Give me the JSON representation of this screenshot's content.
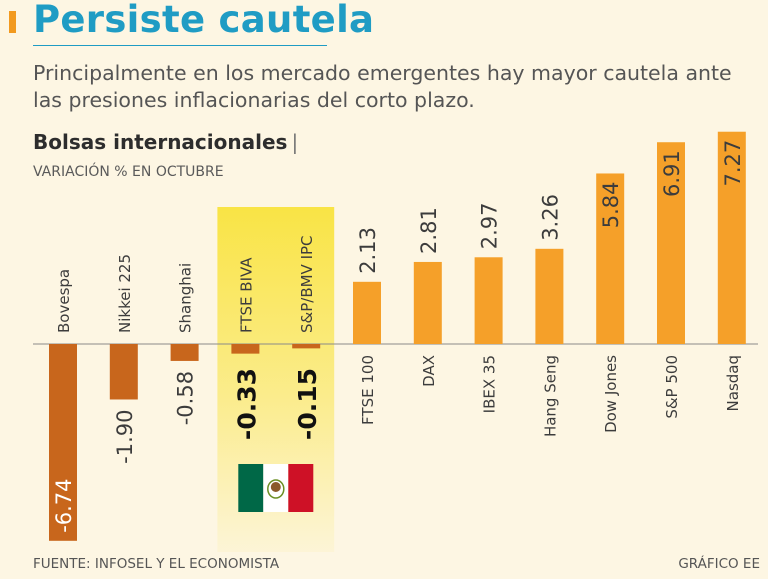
{
  "header": {
    "title": "Persiste cautela",
    "subtitle": "Principalmente en los mercado emergentes hay mayor cautela ante las presiones inflacionarias del corto plazo."
  },
  "chart_data": {
    "type": "bar",
    "title": "Bolsas internacionales",
    "title_separator": "|",
    "subtitle": "VARIACIÓN % EN OCTUBRE",
    "ylabel": "Variación %",
    "categories": [
      "Bovespa",
      "Nikkei 225",
      "Shanghai",
      "FTSE BIVA",
      "S&P/BMV IPC",
      "FTSE 100",
      "DAX",
      "IBEX 35",
      "Hang Seng",
      "Dow Jones",
      "S&P 500",
      "Nasdaq"
    ],
    "values": [
      -6.74,
      -1.9,
      -0.58,
      -0.33,
      -0.15,
      2.13,
      2.81,
      2.97,
      3.26,
      5.84,
      6.91,
      7.27
    ],
    "value_labels": [
      "-6.74",
      "-1.90",
      "-0.58",
      "-0.33",
      "-0.15",
      "2.13",
      "2.81",
      "2.97",
      "3.26",
      "5.84",
      "6.91",
      "7.27"
    ],
    "highlighted_categories": [
      "FTSE BIVA",
      "S&P/BMV IPC"
    ],
    "highlight_note": "Mexico flag",
    "ylim": [
      -7.0,
      7.5
    ],
    "grid": false
  },
  "colors": {
    "title": "#1f9cc4",
    "negative_bar": "#c8661c",
    "positive_bar": "#f5a029",
    "highlight_band": "#f9e445",
    "flag_green": "#006847",
    "flag_red": "#ce1126",
    "flag_white": "#ffffff",
    "background": "#fdf6e3"
  },
  "footer": {
    "source": "FUENTE: INFOSEL Y EL ECONOMISTA",
    "credit": "GRÁFICO EE"
  }
}
